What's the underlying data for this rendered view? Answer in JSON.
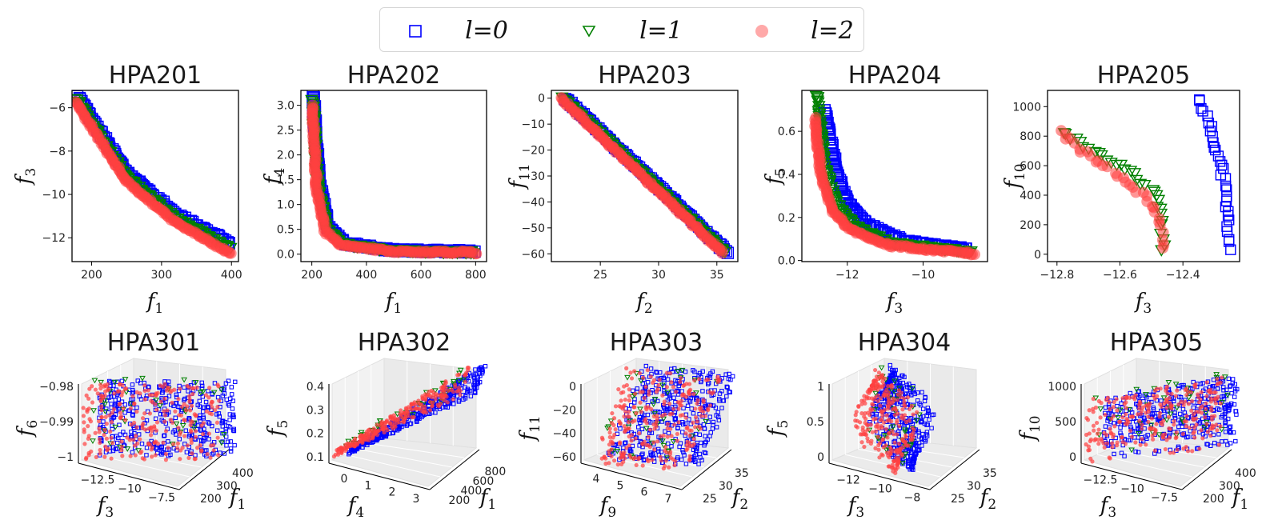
{
  "legend": {
    "entries": [
      {
        "label": "l=0",
        "marker": "square",
        "color": "#0000ff"
      },
      {
        "label": "l=1",
        "marker": "triangle-down",
        "color": "#008000"
      },
      {
        "label": "l=2",
        "marker": "circle",
        "color": "#ff0000"
      }
    ]
  },
  "chart_data": [
    {
      "type": "scatter",
      "title": "HPA201",
      "xlabel": "f1",
      "ylabel": "f3",
      "xlim": [
        172,
        410
      ],
      "ylim": [
        -13.1,
        -5.2
      ],
      "xticks": [
        200,
        300,
        400
      ],
      "yticks": [
        -6,
        -8,
        -10,
        -12
      ],
      "series": [
        {
          "name": "l=0",
          "x": [
            180,
            250,
            320,
            400
          ],
          "y": [
            -5.5,
            -9.0,
            -10.9,
            -12.3
          ]
        },
        {
          "name": "l=1",
          "x": [
            178,
            250,
            320,
            400
          ],
          "y": [
            -5.6,
            -9.2,
            -11.1,
            -12.5
          ]
        },
        {
          "name": "l=2",
          "x": [
            176,
            250,
            320,
            402
          ],
          "y": [
            -5.7,
            -9.4,
            -11.3,
            -12.8
          ]
        }
      ]
    },
    {
      "type": "scatter",
      "title": "HPA202",
      "xlabel": "f1",
      "ylabel": "f4",
      "xlim": [
        160,
        840
      ],
      "ylim": [
        -0.15,
        3.3
      ],
      "xticks": [
        200,
        400,
        600,
        800
      ],
      "yticks": [
        0.0,
        0.5,
        1.0,
        1.5,
        2.0,
        2.5,
        3.0
      ],
      "series": [
        {
          "name": "l=0",
          "x": [
            205,
            225,
            260,
            320,
            500,
            800
          ],
          "y": [
            3.2,
            1.5,
            0.55,
            0.22,
            0.08,
            0.05
          ]
        },
        {
          "name": "l=1",
          "x": [
            203,
            222,
            255,
            315,
            500,
            800
          ],
          "y": [
            3.1,
            1.4,
            0.5,
            0.2,
            0.07,
            0.04
          ]
        },
        {
          "name": "l=2",
          "x": [
            201,
            218,
            250,
            310,
            500,
            810
          ],
          "y": [
            3.0,
            1.3,
            0.45,
            0.17,
            0.05,
            0.03
          ]
        }
      ]
    },
    {
      "type": "scatter",
      "title": "HPA203",
      "xlabel": "f2",
      "ylabel": "f11",
      "xlim": [
        20.8,
        36.8
      ],
      "ylim": [
        -63,
        3
      ],
      "xticks": [
        25,
        30,
        35
      ],
      "yticks": [
        0,
        -10,
        -20,
        -30,
        -40,
        -50,
        -60
      ],
      "series": [
        {
          "name": "l=0",
          "x": [
            22,
            36
          ],
          "y": [
            0,
            -60
          ]
        },
        {
          "name": "l=1",
          "x": [
            21.8,
            35.8
          ],
          "y": [
            0,
            -60
          ]
        },
        {
          "name": "l=2",
          "x": [
            21.6,
            35.6
          ],
          "y": [
            0,
            -60
          ]
        }
      ]
    },
    {
      "type": "scatter",
      "title": "HPA204",
      "xlabel": "f3",
      "ylabel": "f5",
      "xlim": [
        -13.2,
        -8.3
      ],
      "ylim": [
        -0.005,
        0.79
      ],
      "xticks": [
        -12,
        -10
      ],
      "yticks": [
        0.0,
        0.2,
        0.4,
        0.6
      ],
      "series": [
        {
          "name": "l=0",
          "x": [
            -12.6,
            -12.3,
            -12.0,
            -11.5,
            -10.5,
            -8.8
          ],
          "y": [
            0.7,
            0.42,
            0.27,
            0.17,
            0.09,
            0.05
          ]
        },
        {
          "name": "l=1",
          "x": [
            -12.8,
            -12.6,
            -12.3,
            -11.8,
            -10.8,
            -8.7
          ],
          "y": [
            0.77,
            0.45,
            0.27,
            0.16,
            0.08,
            0.04
          ]
        },
        {
          "name": "l=2",
          "x": [
            -12.85,
            -12.7,
            -12.4,
            -11.9,
            -10.9,
            -8.6
          ],
          "y": [
            0.66,
            0.4,
            0.23,
            0.14,
            0.07,
            0.03
          ]
        }
      ]
    },
    {
      "type": "scatter",
      "title": "HPA205",
      "xlabel": "f3",
      "ylabel": "f10",
      "xlim": [
        -12.83,
        -12.22
      ],
      "ylim": [
        -50,
        1110
      ],
      "xticks": [
        -12.8,
        -12.6,
        -12.4
      ],
      "yticks": [
        0,
        200,
        400,
        600,
        800,
        1000
      ],
      "series": [
        {
          "name": "l=0",
          "x": [
            -12.35,
            -12.32,
            -12.29,
            -12.27,
            -12.26,
            -12.25
          ],
          "y": [
            1060,
            900,
            700,
            500,
            300,
            0
          ]
        },
        {
          "name": "l=1",
          "x": [
            -12.78,
            -12.7,
            -12.6,
            -12.5,
            -12.47,
            -12.46
          ],
          "y": [
            830,
            720,
            600,
            450,
            300,
            0
          ]
        },
        {
          "name": "l=2",
          "x": [
            -12.79,
            -12.72,
            -12.62,
            -12.52,
            -12.47,
            -12.46
          ],
          "y": [
            840,
            700,
            560,
            380,
            220,
            0
          ]
        }
      ]
    },
    {
      "type": "scatter3d",
      "title": "HPA301",
      "xlabel": "f3",
      "ylabel": "f1",
      "zlabel": "f6",
      "xticks": [
        -12.5,
        -10.0,
        -7.5
      ],
      "yticks": [
        200,
        300,
        400
      ],
      "zticks": [
        -0.98,
        -0.99,
        -1.0
      ]
    },
    {
      "type": "scatter3d",
      "title": "HPA302",
      "xlabel": "f4",
      "ylabel": "f1",
      "zlabel": "f5",
      "xticks": [
        0,
        1,
        2,
        3
      ],
      "yticks": [
        200,
        400,
        600,
        800
      ],
      "zticks": [
        0.4,
        0.3,
        0.2,
        0.1
      ]
    },
    {
      "type": "scatter3d",
      "title": "HPA303",
      "xlabel": "f9",
      "ylabel": "f2",
      "zlabel": "f11",
      "xticks": [
        4,
        5,
        6,
        7
      ],
      "yticks": [
        25,
        30,
        35
      ],
      "zticks": [
        0,
        -20,
        -40,
        -60
      ]
    },
    {
      "type": "scatter3d",
      "title": "HPA304",
      "xlabel": "f3",
      "ylabel": "f2",
      "zlabel": "f5",
      "xticks": [
        -12,
        -10,
        -8
      ],
      "yticks": [
        25,
        30,
        35
      ],
      "zticks": [
        1.0,
        0.5,
        0.0
      ]
    },
    {
      "type": "scatter3d",
      "title": "HPA305",
      "xlabel": "f3",
      "ylabel": "f1",
      "zlabel": "f10",
      "xticks": [
        -12.5,
        -10.0,
        -7.5
      ],
      "yticks": [
        200,
        300,
        400
      ],
      "zticks": [
        1000,
        500,
        0
      ]
    }
  ]
}
